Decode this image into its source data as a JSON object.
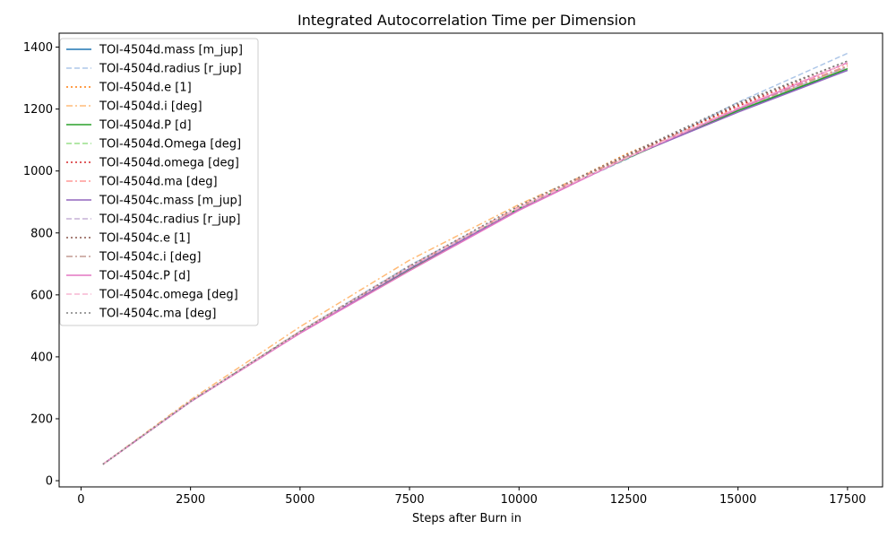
{
  "chart_data": {
    "type": "line",
    "title": "Integrated Autocorrelation Time per Dimension",
    "xlabel": "Steps after Burn in",
    "ylabel": "",
    "xlim": [
      -500,
      18300
    ],
    "ylim": [
      -20,
      1445
    ],
    "xticks": [
      0,
      2500,
      5000,
      7500,
      10000,
      12500,
      15000,
      17500
    ],
    "yticks": [
      0,
      200,
      400,
      600,
      800,
      1000,
      1200,
      1400
    ],
    "grid": false,
    "legend_position": "top-left",
    "x": [
      500,
      2500,
      5000,
      7500,
      10000,
      12500,
      15000,
      17500
    ],
    "series": [
      {
        "name": "TOI-4504d.mass [m_jup]",
        "color": "#1f77b4",
        "dash": "solid",
        "values": [
          53,
          255,
          478,
          685,
          878,
          1045,
          1195,
          1325
        ]
      },
      {
        "name": "TOI-4504d.radius [r_jup]",
        "color": "#aec7e8",
        "dash": "dashed",
        "values": [
          53,
          256,
          483,
          695,
          882,
          1040,
          1222,
          1380
        ]
      },
      {
        "name": "TOI-4504d.e [1]",
        "color": "#ff7f0e",
        "dash": "dotted",
        "values": [
          53,
          256,
          482,
          692,
          885,
          1058,
          1205,
          1340
        ]
      },
      {
        "name": "TOI-4504d.i [deg]",
        "color": "#ffbb78",
        "dash": "dashdot",
        "values": [
          53,
          261,
          497,
          712,
          892,
          1050,
          1200,
          1333
        ]
      },
      {
        "name": "TOI-4504d.P [d]",
        "color": "#2ca02c",
        "dash": "solid",
        "values": [
          53,
          256,
          480,
          680,
          880,
          1043,
          1195,
          1330
        ]
      },
      {
        "name": "TOI-4504d.Omega [deg]",
        "color": "#98df8a",
        "dash": "dashed",
        "values": [
          53,
          256,
          481,
          690,
          880,
          1045,
          1200,
          1335
        ]
      },
      {
        "name": "TOI-4504d.omega [deg]",
        "color": "#d62728",
        "dash": "dotted",
        "values": [
          53,
          256,
          480,
          688,
          883,
          1055,
          1210,
          1348
        ]
      },
      {
        "name": "TOI-4504d.ma [deg]",
        "color": "#ff9896",
        "dash": "dashdot",
        "values": [
          53,
          256,
          482,
          693,
          885,
          1050,
          1205,
          1340
        ]
      },
      {
        "name": "TOI-4504c.mass [m_jup]",
        "color": "#9467bd",
        "dash": "solid",
        "values": [
          53,
          255,
          478,
          685,
          875,
          1045,
          1190,
          1325
        ]
      },
      {
        "name": "TOI-4504c.radius [r_jup]",
        "color": "#c5b0d5",
        "dash": "dashed",
        "values": [
          53,
          256,
          480,
          688,
          880,
          1045,
          1200,
          1335
        ]
      },
      {
        "name": "TOI-4504c.e [1]",
        "color": "#8c564b",
        "dash": "dotted",
        "values": [
          53,
          256,
          480,
          690,
          880,
          1050,
          1215,
          1355
        ]
      },
      {
        "name": "TOI-4504c.i [deg]",
        "color": "#c49c94",
        "dash": "dashdot",
        "values": [
          53,
          256,
          481,
          690,
          880,
          1048,
          1200,
          1338
        ]
      },
      {
        "name": "TOI-4504c.P [d]",
        "color": "#e377c2",
        "dash": "solid",
        "values": [
          53,
          255,
          476,
          678,
          873,
          1045,
          1200,
          1350
        ]
      },
      {
        "name": "TOI-4504c.omega [deg]",
        "color": "#f7b6d2",
        "dash": "dashed",
        "values": [
          53,
          256,
          480,
          690,
          882,
          1045,
          1205,
          1350
        ]
      },
      {
        "name": "TOI-4504c.ma [deg]",
        "color": "#7f7f7f",
        "dash": "dotted",
        "values": [
          53,
          256,
          481,
          693,
          888,
          1055,
          1220,
          1355
        ]
      }
    ]
  }
}
